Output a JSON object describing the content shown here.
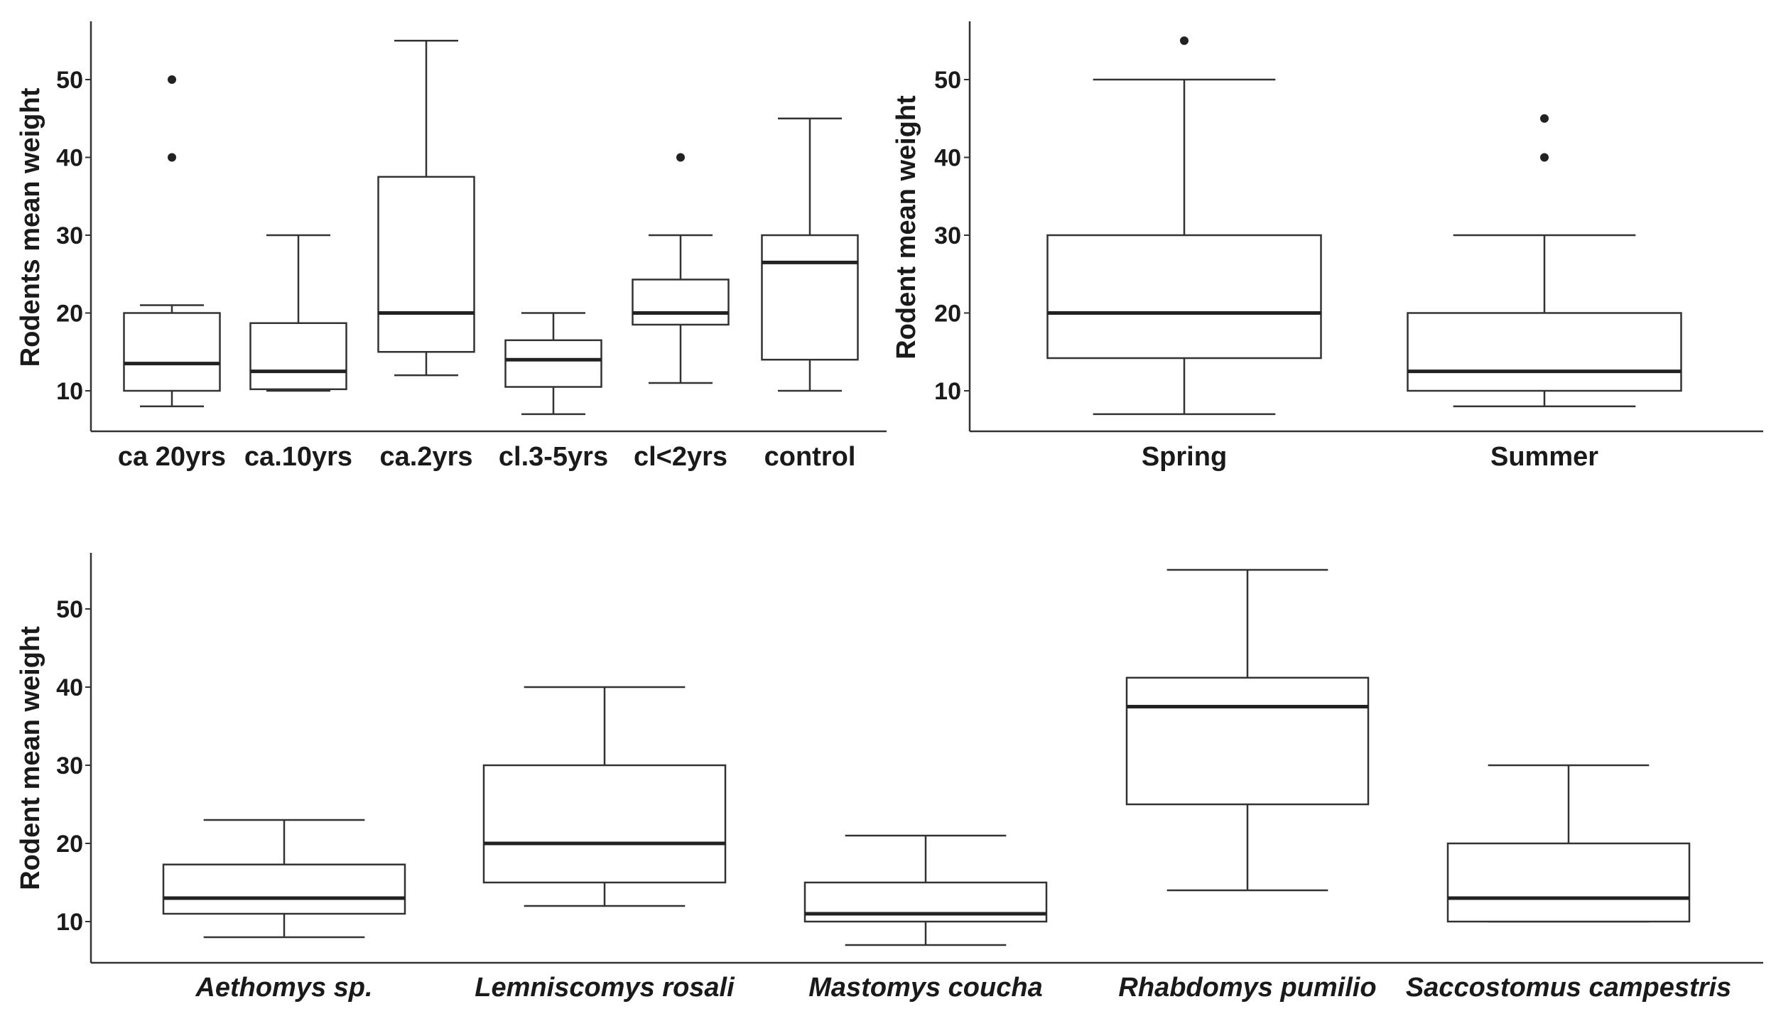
{
  "chart_data": [
    {
      "type": "box",
      "ylabel": "Rodents mean weight",
      "xlabel": "",
      "ylim": [
        5,
        57
      ],
      "yticks": [
        10,
        20,
        30,
        40,
        50
      ],
      "grid": false,
      "italic_categories": false,
      "categories": [
        "ca 20yrs",
        "ca.10yrs",
        "ca.2yrs",
        "cl.3-5yrs",
        "cl<2yrs",
        "control"
      ],
      "boxes": [
        {
          "min": 8,
          "q1": 10,
          "median": 13.5,
          "q3": 20,
          "max": 21,
          "outliers": [
            40,
            50
          ]
        },
        {
          "min": 10,
          "q1": 10.2,
          "median": 12.5,
          "q3": 18.7,
          "max": 30,
          "outliers": []
        },
        {
          "min": 12,
          "q1": 15,
          "median": 20,
          "q3": 37.5,
          "max": 55,
          "outliers": []
        },
        {
          "min": 7,
          "q1": 10.5,
          "median": 14,
          "q3": 16.5,
          "max": 20,
          "outliers": []
        },
        {
          "min": 11,
          "q1": 18.5,
          "median": 20,
          "q3": 24.3,
          "max": 30,
          "outliers": [
            40
          ]
        },
        {
          "min": 10,
          "q1": 14,
          "median": 26.5,
          "q3": 30,
          "max": 45,
          "outliers": []
        }
      ]
    },
    {
      "type": "box",
      "ylabel": "Rodent mean weight",
      "xlabel": "",
      "ylim": [
        5,
        57
      ],
      "yticks": [
        10,
        20,
        30,
        40,
        50
      ],
      "grid": false,
      "italic_categories": false,
      "categories": [
        "Spring",
        "Summer"
      ],
      "boxes": [
        {
          "min": 7,
          "q1": 14.2,
          "median": 20,
          "q3": 30,
          "max": 50,
          "outliers": [
            55
          ]
        },
        {
          "min": 8,
          "q1": 10,
          "median": 12.5,
          "q3": 20,
          "max": 30,
          "outliers": [
            40,
            45
          ]
        }
      ]
    },
    {
      "type": "box",
      "ylabel": "Rodent mean weight",
      "xlabel": "",
      "ylim": [
        5,
        57
      ],
      "yticks": [
        10,
        20,
        30,
        40,
        50
      ],
      "grid": false,
      "italic_categories": true,
      "categories": [
        "Aethomys sp.",
        "Lemniscomys rosali",
        "Mastomys coucha",
        "Rhabdomys pumilio",
        "Saccostomus campestris"
      ],
      "boxes": [
        {
          "min": 8,
          "q1": 11,
          "median": 13,
          "q3": 17.3,
          "max": 23,
          "outliers": []
        },
        {
          "min": 12,
          "q1": 15,
          "median": 20,
          "q3": 30,
          "max": 40,
          "outliers": []
        },
        {
          "min": 7,
          "q1": 10,
          "median": 11,
          "q3": 15,
          "max": 21,
          "outliers": []
        },
        {
          "min": 14,
          "q1": 25,
          "median": 37.5,
          "q3": 41.2,
          "max": 55,
          "outliers": []
        },
        {
          "min": 10,
          "q1": 10,
          "median": 13,
          "q3": 20,
          "max": 30,
          "outliers": []
        }
      ]
    }
  ]
}
